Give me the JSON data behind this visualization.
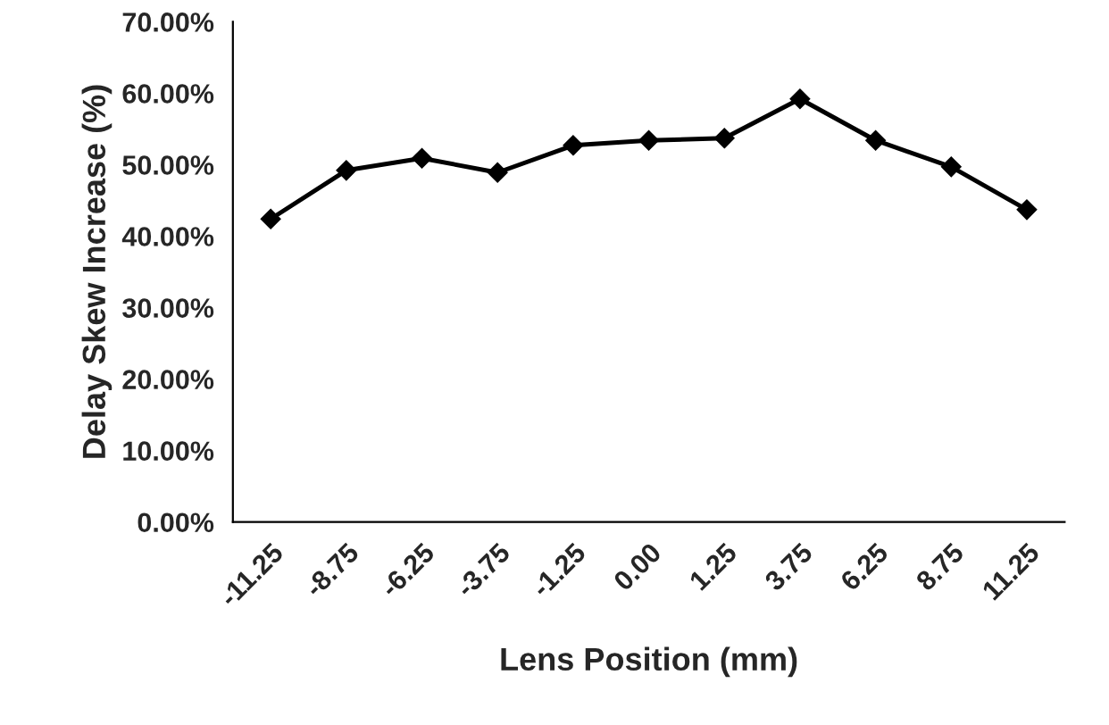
{
  "chart_data": {
    "type": "line",
    "xlabel": "Lens Position (mm)",
    "ylabel": "Delay Skew Increase (%)",
    "categories": [
      "-11.25",
      "-8.75",
      "-6.25",
      "-3.75",
      "-1.25",
      "0.00",
      "1.25",
      "3.75",
      "6.25",
      "8.75",
      "11.25"
    ],
    "series": [
      {
        "color": "#000000",
        "values": [
          42.4,
          49.2,
          50.9,
          48.9,
          52.7,
          53.4,
          53.7,
          59.2,
          53.4,
          49.7,
          43.7
        ]
      }
    ],
    "ylim": [
      0,
      70
    ],
    "yticks": [
      {
        "value": 0,
        "label": "0.00%"
      },
      {
        "value": 10,
        "label": "10.00%"
      },
      {
        "value": 20,
        "label": "20.00%"
      },
      {
        "value": 30,
        "label": "30.00%"
      },
      {
        "value": 40,
        "label": "40.00%"
      },
      {
        "value": 50,
        "label": "50.00%"
      },
      {
        "value": 60,
        "label": "60.00%"
      },
      {
        "value": 70,
        "label": "70.00%"
      }
    ],
    "marker": "diamond",
    "line_style": "solid",
    "grid": false,
    "legend": false
  }
}
